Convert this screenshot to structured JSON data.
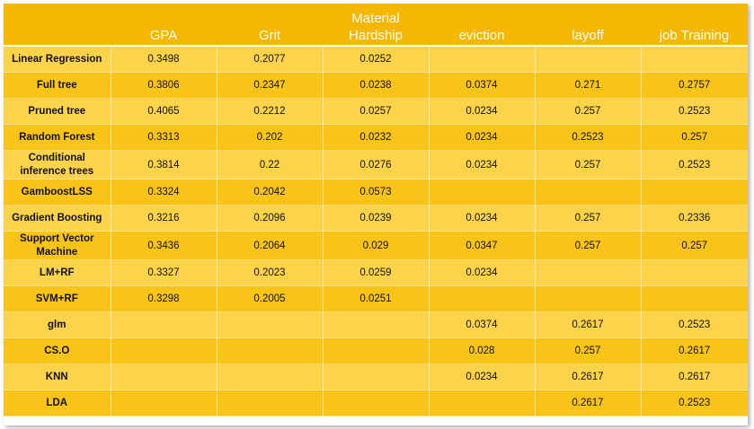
{
  "colors": {
    "header_bg": "#f5b700",
    "header_text": "#ffffff",
    "row_light": "#fdd34a",
    "row_dark": "#f9c418",
    "cell_text": "#111111"
  },
  "table": {
    "headers": {
      "method": "",
      "gpa": "GPA",
      "grit": "Grit",
      "material_line1": "Material",
      "material_line2": "Hardship",
      "eviction": "eviction",
      "layoff": "layoff",
      "job_training": "job Training"
    },
    "rows": [
      {
        "method": "Linear Regression",
        "gpa": "0.3498",
        "grit": "0.2077",
        "material": "0.0252",
        "eviction": "",
        "layoff": "",
        "job_training": ""
      },
      {
        "method": "Full tree",
        "gpa": "0.3806",
        "grit": "0.2347",
        "material": "0.0238",
        "eviction": "0.0374",
        "layoff": "0.271",
        "job_training": "0.2757"
      },
      {
        "method": "Pruned tree",
        "gpa": "0.4065",
        "grit": "0.2212",
        "material": "0.0257",
        "eviction": "0.0234",
        "layoff": "0.257",
        "job_training": "0.2523"
      },
      {
        "method": "Random Forest",
        "gpa": "0.3313",
        "grit": "0.202",
        "material": "0.0232",
        "eviction": "0.0234",
        "layoff": "0.2523",
        "job_training": "0.257"
      },
      {
        "method_line1": "Conditional",
        "method_line2": "inference trees",
        "gpa": "0.3814",
        "grit": "0.22",
        "material": "0.0276",
        "eviction": "0.0234",
        "layoff": "0.257",
        "job_training": "0.2523"
      },
      {
        "method": "GamboostLSS",
        "gpa": "0.3324",
        "grit": "0.2042",
        "material": "0.0573",
        "eviction": "",
        "layoff": "",
        "job_training": ""
      },
      {
        "method": "Gradient Boosting",
        "gpa": "0.3216",
        "grit": "0.2096",
        "material": "0.0239",
        "eviction": "0.0234",
        "layoff": "0.257",
        "job_training": "0.2336"
      },
      {
        "method_line1": "Support Vector",
        "method_line2": "Machine",
        "gpa": "0.3436",
        "grit": "0.2064",
        "material": "0.029",
        "eviction": "0.0347",
        "layoff": "0.257",
        "job_training": "0.257"
      },
      {
        "method": "LM+RF",
        "gpa": "0.3327",
        "grit": "0.2023",
        "material": "0.0259",
        "eviction": "0.0234",
        "layoff": "",
        "job_training": ""
      },
      {
        "method": "SVM+RF",
        "gpa": "0.3298",
        "grit": "0.2005",
        "material": "0.0251",
        "eviction": "",
        "layoff": "",
        "job_training": ""
      },
      {
        "method": "glm",
        "gpa": "",
        "grit": "",
        "material": "",
        "eviction": "0.0374",
        "layoff": "0.2617",
        "job_training": "0.2523"
      },
      {
        "method": "CS.O",
        "gpa": "",
        "grit": "",
        "material": "",
        "eviction": "0.028",
        "layoff": "0.257",
        "job_training": "0.2617"
      },
      {
        "method": "KNN",
        "gpa": "",
        "grit": "",
        "material": "",
        "eviction": "0.0234",
        "layoff": "0.2617",
        "job_training": "0.2617"
      },
      {
        "method": "LDA",
        "gpa": "",
        "grit": "",
        "material": "",
        "eviction": "",
        "layoff": "0.2617",
        "job_training": "0.2523"
      }
    ]
  }
}
